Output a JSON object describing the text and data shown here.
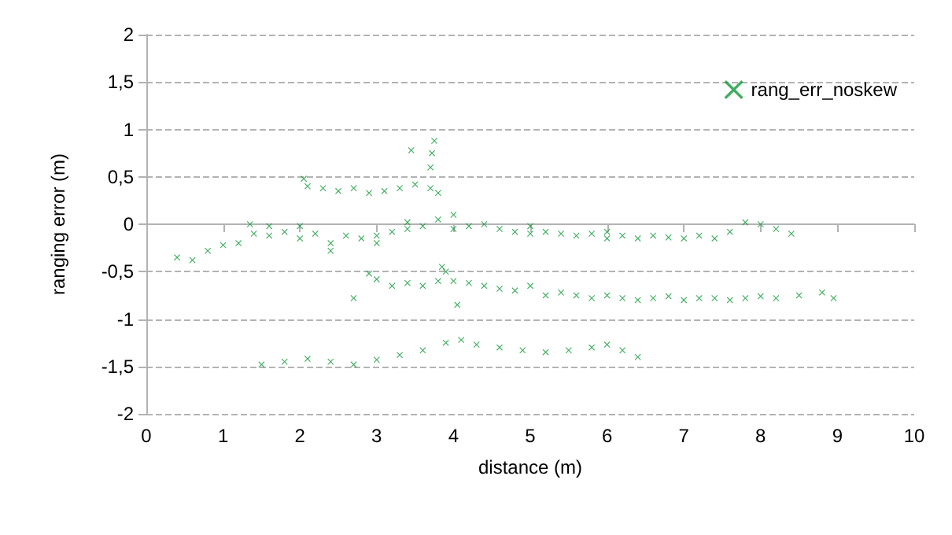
{
  "chart_data": {
    "type": "scatter",
    "xlabel": "distance (m)",
    "ylabel": "ranging error (m)",
    "xlim": [
      0,
      10
    ],
    "xticks": [
      0,
      1,
      2,
      3,
      4,
      5,
      6,
      7,
      8,
      9,
      10
    ],
    "ylim": [
      -2,
      2
    ],
    "yticks": [
      -2,
      {
        "value": -1.5,
        "label": "-1,5"
      },
      -1,
      {
        "value": -0.5,
        "label": "-0,5"
      },
      0,
      {
        "value": 0.5,
        "label": "0,5"
      },
      1,
      {
        "value": 1.5,
        "label": "1,5"
      },
      2
    ],
    "grid": "y",
    "legend": "top right",
    "marker": "cross",
    "series": [
      {
        "name": "rang_err_noskew",
        "color": "#109a38",
        "x": [
          1.5,
          1.8,
          2.1,
          2.4,
          2.7,
          3.0,
          3.3,
          3.6,
          3.9,
          4.1,
          4.3,
          4.6,
          4.9,
          5.2,
          5.5,
          5.8,
          6.0,
          6.2,
          6.4,
          2.05,
          2.1,
          2.3,
          2.5,
          2.7,
          2.9,
          3.1,
          3.3,
          3.5,
          3.7,
          3.8,
          3.7,
          3.72,
          3.75,
          3.45,
          0.4,
          0.6,
          0.8,
          1.0,
          1.2,
          1.35,
          1.4,
          1.6,
          1.8,
          2.0,
          2.2,
          2.4,
          2.6,
          2.8,
          3.0,
          3.2,
          3.4,
          3.6,
          3.8,
          4.0,
          4.2,
          4.4,
          4.6,
          4.8,
          5.0,
          5.2,
          5.4,
          5.6,
          5.8,
          6.0,
          6.2,
          6.4,
          6.6,
          6.8,
          7.0,
          7.2,
          7.4,
          7.6,
          7.8,
          8.0,
          8.2,
          8.4,
          2.4,
          3.0,
          3.4,
          4.0,
          5.0,
          6.0,
          2.0,
          1.6,
          2.7,
          2.9,
          3.0,
          3.2,
          3.4,
          3.6,
          3.8,
          3.85,
          3.9,
          4.0,
          4.05,
          4.2,
          4.4,
          4.6,
          4.8,
          5.0,
          5.2,
          5.4,
          5.6,
          5.8,
          6.0,
          6.2,
          6.4,
          6.6,
          6.8,
          7.0,
          7.2,
          7.4,
          7.6,
          7.8,
          8.0,
          8.2,
          8.5,
          8.8,
          8.95
        ],
        "values": [
          -1.48,
          -1.45,
          -1.42,
          -1.45,
          -1.48,
          -1.43,
          -1.38,
          -1.33,
          -1.25,
          -1.22,
          -1.27,
          -1.3,
          -1.33,
          -1.35,
          -1.33,
          -1.3,
          -1.27,
          -1.33,
          -1.4,
          0.48,
          0.4,
          0.38,
          0.35,
          0.38,
          0.33,
          0.35,
          0.38,
          0.42,
          0.38,
          0.33,
          0.6,
          0.75,
          0.88,
          0.78,
          -0.35,
          -0.38,
          -0.28,
          -0.22,
          -0.2,
          0.0,
          -0.1,
          -0.12,
          -0.08,
          -0.15,
          -0.1,
          -0.2,
          -0.12,
          -0.15,
          -0.12,
          -0.08,
          -0.05,
          -0.02,
          0.05,
          -0.05,
          -0.02,
          0.0,
          -0.05,
          -0.08,
          -0.1,
          -0.08,
          -0.1,
          -0.12,
          -0.1,
          -0.15,
          -0.12,
          -0.15,
          -0.12,
          -0.14,
          -0.15,
          -0.12,
          -0.15,
          -0.08,
          0.02,
          0.0,
          -0.05,
          -0.1,
          -0.28,
          -0.2,
          0.02,
          0.1,
          -0.02,
          -0.08,
          -0.02,
          -0.02,
          -0.78,
          -0.52,
          -0.58,
          -0.65,
          -0.62,
          -0.65,
          -0.6,
          -0.45,
          -0.5,
          -0.6,
          -0.85,
          -0.62,
          -0.65,
          -0.68,
          -0.7,
          -0.65,
          -0.75,
          -0.72,
          -0.75,
          -0.78,
          -0.75,
          -0.78,
          -0.8,
          -0.78,
          -0.76,
          -0.8,
          -0.78,
          -0.78,
          -0.8,
          -0.78,
          -0.76,
          -0.78,
          -0.75,
          -0.72,
          -0.78
        ]
      }
    ]
  }
}
